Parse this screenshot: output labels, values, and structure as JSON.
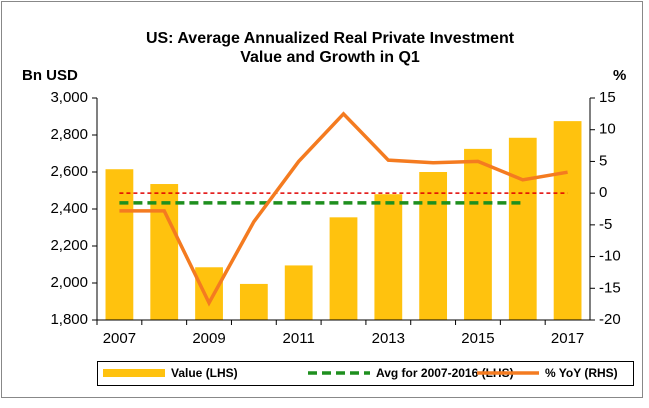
{
  "chart_data": {
    "type": "bar",
    "title": "US: Average Annualized Real Private Investment",
    "subtitle": "Value and Growth in Q1",
    "y_label": "Bn USD",
    "y2_label": "%",
    "categories": [
      "2007",
      null,
      "2009",
      null,
      "2011",
      null,
      "2013",
      null,
      "2015",
      null,
      "2017"
    ],
    "ylim": [
      1800,
      3000
    ],
    "yticks": [
      {
        "value": 1800,
        "label": "1,800"
      },
      {
        "value": 2000,
        "label": "2,000"
      },
      {
        "value": 2200,
        "label": "2,200"
      },
      {
        "value": 2400,
        "label": "2,400"
      },
      {
        "value": 2600,
        "label": "2,600"
      },
      {
        "value": 2800,
        "label": "2,800"
      },
      {
        "value": 3000,
        "label": "3,000"
      }
    ],
    "y2lim": [
      -20,
      15
    ],
    "y2ticks": [
      -20,
      -15,
      -10,
      -5,
      0,
      5,
      10,
      15
    ],
    "y2_reference": {
      "value": 0,
      "color": "#e00000"
    },
    "series": [
      {
        "name": "Value (LHS)",
        "type": "bar",
        "color": "#ffc20e",
        "values": [
          2615,
          2535,
          2085,
          1995,
          2095,
          2355,
          2480,
          2600,
          2725,
          2785,
          2875
        ]
      },
      {
        "name": "Avg for 2007-2016 (LHS)",
        "type": "line",
        "dashed": true,
        "color": "#1e8f1e",
        "values": [
          2433,
          2433,
          2433,
          2433,
          2433,
          2433,
          2433,
          2433,
          2433,
          2433,
          null
        ]
      },
      {
        "name": "% YoY (RHS)",
        "type": "line",
        "axis": "y2",
        "color": "#f47b20",
        "values": [
          -2.8,
          -2.8,
          -17.3,
          -4.5,
          5.0,
          12.5,
          5.2,
          4.8,
          5.0,
          2.1,
          3.3
        ]
      }
    ]
  }
}
